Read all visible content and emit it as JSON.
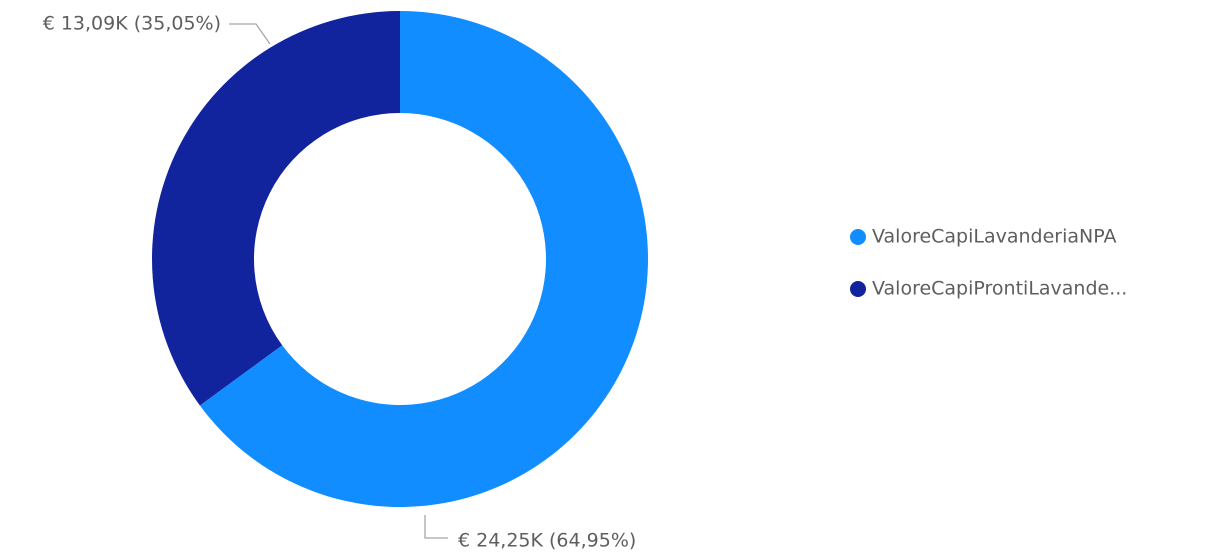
{
  "chart_data": {
    "type": "donut",
    "categories": [
      "ValoreCapiLavanderiaNPA",
      "ValoreCapiProntiLavande..."
    ],
    "values": [
      24.25,
      13.09
    ],
    "value_labels": [
      "€ 24,25K (64,95%)",
      "€ 13,09K (35,05%)"
    ],
    "colors": [
      "#118DFF",
      "#12239E"
    ],
    "legend": "right"
  }
}
